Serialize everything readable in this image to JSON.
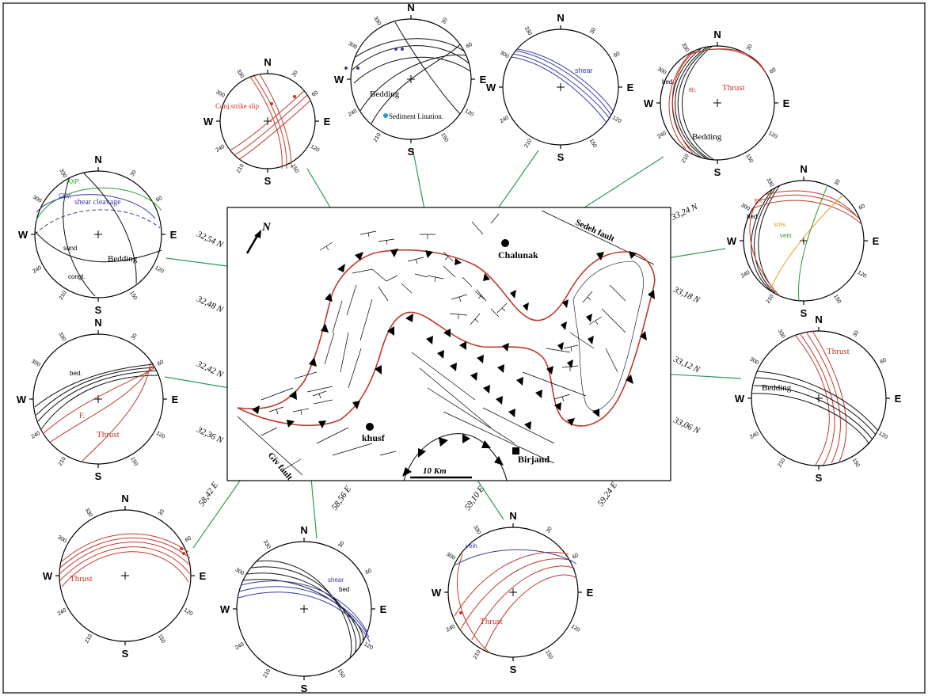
{
  "map": {
    "north_label": "N",
    "scale_label": "10 Km",
    "towns": {
      "chalunak": "Chalunak",
      "khusf": "khusf",
      "birjand": "Birjand"
    },
    "faults": {
      "sedeh": "Sedeh fault",
      "giv": "Giv fault"
    },
    "latitudes": {
      "left": [
        "32,54 N",
        "32,48 N",
        "32,42 N",
        "32,36 N"
      ],
      "right": [
        "33,24 N",
        "33,18 N",
        "33,12 N",
        "33,06 N"
      ]
    },
    "longitudes": [
      "58,42 E",
      "58,56 E",
      "59,10 E",
      "59,24 E"
    ]
  },
  "stereonets": {
    "directions": {
      "n": "N",
      "e": "E",
      "s": "S",
      "w": "W"
    },
    "ticks": [
      "30",
      "60",
      "120",
      "150",
      "210",
      "240",
      "300",
      "330"
    ],
    "net_strike_slip": {
      "label": "Conj.strike slip"
    },
    "net_bedding_lineation": {
      "label1": "Bedding",
      "label2": "Sediment Lination."
    },
    "net_shear_top": {
      "label": "shear"
    },
    "net_thrust_bed_top": {
      "label1": "Thrust",
      "label2": "bed.",
      "label3": "Bedding",
      "label4": "fth."
    },
    "net_shear_cleavage": {
      "label1": "AXP.",
      "label2": "CLV.",
      "label3": "shear cleavage",
      "label4": "sand",
      "label5": "congl.",
      "label6": "Bedding"
    },
    "net_vein": {
      "label1": "sms.",
      "label2": "vein",
      "label3": "bed.",
      "label4": "fth."
    },
    "net_thrust_bed_left": {
      "label1": "bed.",
      "label2": "F.",
      "label3": "Thrust"
    },
    "net_thrust_bedding_right": {
      "label1": "Thrust",
      "label2": "Bedding"
    },
    "net_thrust_bottom_left": {
      "label": "Thrust"
    },
    "net_shear_bed_bottom": {
      "label1": "shear",
      "label2": "bed"
    },
    "net_vein_thrust_bottom": {
      "label1": "vein",
      "label2": "Thrust"
    }
  },
  "colors": {
    "thrust": "#c0392b",
    "bedding": "#111111",
    "shear": "#3a3aa8",
    "connector": "#2e9a57",
    "axial_plane": "#2f9a2f",
    "sms": "#e69a1e",
    "lineation_point": "#1fa0c8"
  }
}
